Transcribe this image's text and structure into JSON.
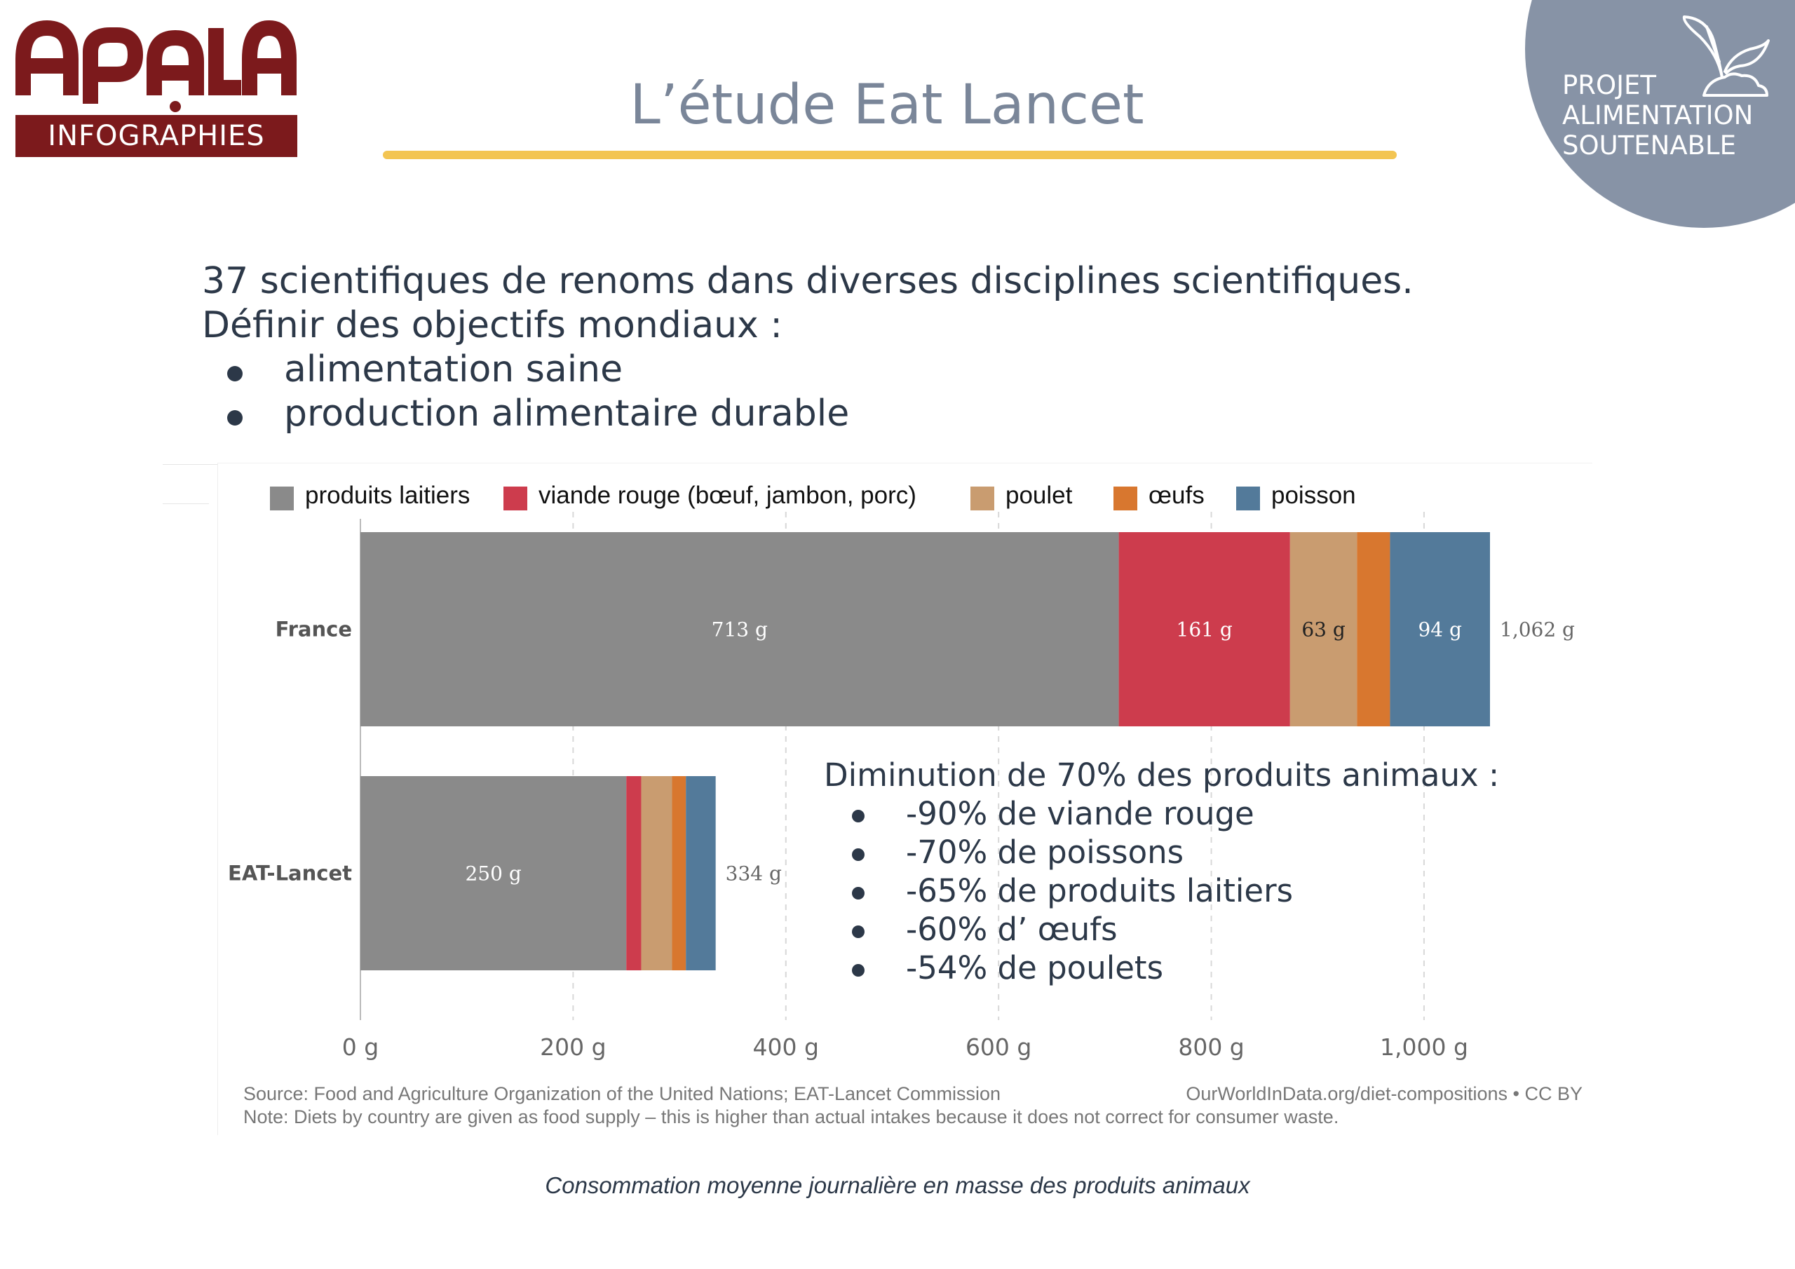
{
  "logo": {
    "wordmark": "APALA",
    "subtitle": "INFOGRAPHIES"
  },
  "header": {
    "title": "L’étude Eat Lancet"
  },
  "badge": {
    "lines": [
      "PROJET",
      "ALIMENTATION",
      "SOUTENABLE"
    ]
  },
  "intro": {
    "lines": [
      "37 scientifiques de renoms dans diverses disciplines scientifiques.",
      "Définir des objectifs mondiaux :"
    ],
    "bullets": [
      "alimentation saine",
      "production alimentaire durable"
    ]
  },
  "note": {
    "heading": "Diminution de 70% des produits animaux :",
    "bullets": [
      "-90% de viande rouge",
      "-70% de poissons",
      "-65% de produits laitiers",
      "-60% d’ œufs",
      "-54% de poulets"
    ]
  },
  "chart_data": {
    "type": "bar",
    "orientation": "horizontal",
    "stacked": true,
    "categories": [
      "France",
      "EAT-Lancet"
    ],
    "series": [
      {
        "name": "produits laitiers",
        "color": "#8a8a8a",
        "values": [
          713,
          250
        ],
        "labels": [
          "713 g",
          "250 g"
        ],
        "label_color": "#ffffff"
      },
      {
        "name": "viande rouge (bœuf, jambon, porc)",
        "color": "#cd3c4d",
        "values": [
          161,
          14
        ],
        "labels": [
          "161 g",
          ""
        ],
        "label_color": "#ffffff"
      },
      {
        "name": "poulet",
        "color": "#c99c70",
        "values": [
          63,
          29
        ],
        "labels": [
          "63 g",
          ""
        ],
        "label_color": "#222222"
      },
      {
        "name": "œufs",
        "color": "#d8772f",
        "values": [
          31,
          13
        ],
        "labels": [
          "",
          ""
        ],
        "label_color": "#ffffff"
      },
      {
        "name": "poisson",
        "color": "#537a9a",
        "values": [
          94,
          28
        ],
        "labels": [
          "94 g",
          ""
        ],
        "label_color": "#ffffff"
      }
    ],
    "totals": [
      "1,062 g",
      "334 g"
    ],
    "xlim": [
      0,
      1100
    ],
    "xticks": [
      0,
      200,
      400,
      600,
      800,
      1000
    ],
    "xtick_labels": [
      "0 g",
      "200 g",
      "400 g",
      "600 g",
      "800 g",
      "1,000 g"
    ],
    "legend_position": "top",
    "grid": "vertical dashed"
  },
  "source": {
    "left": "Source: Food and Agriculture Organization of the United Nations; EAT-Lancet Commission",
    "right": "OurWorldInData.org/diet-compositions • CC BY",
    "note": "Note: Diets by country are given as food supply – this is higher than actual intakes because it does not correct for consumer waste."
  },
  "caption": "Consommation moyenne journalière en masse des produits animaux"
}
